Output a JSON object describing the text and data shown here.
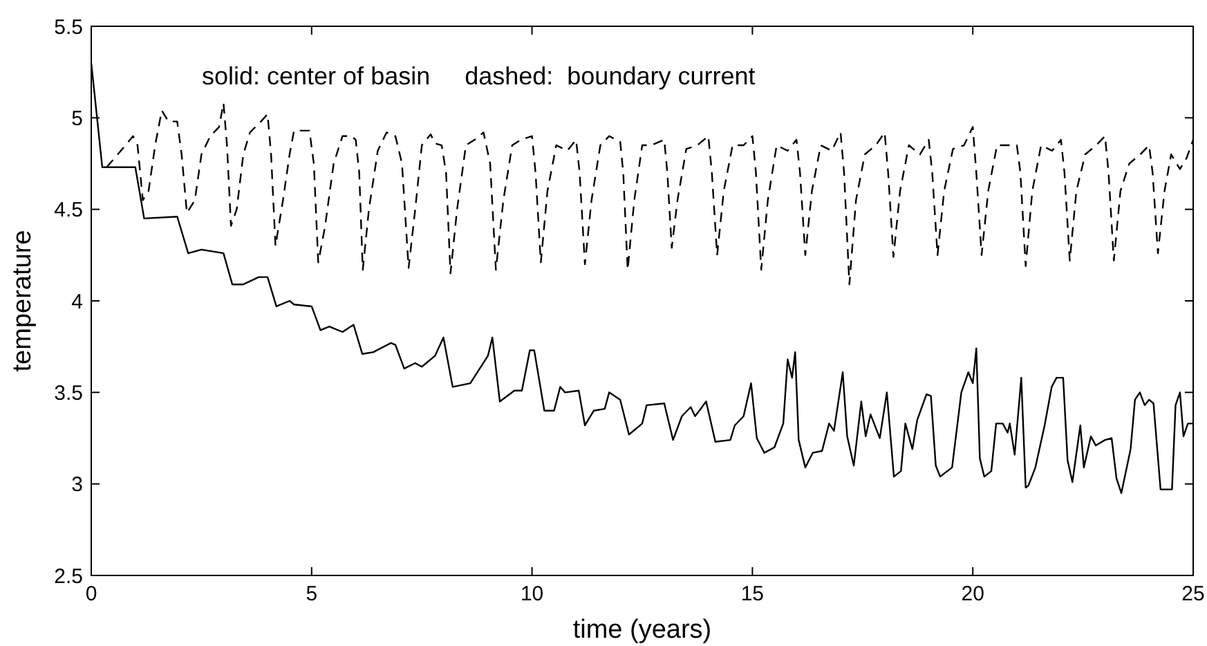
{
  "chart_data": {
    "type": "line",
    "xlabel": "time (years)",
    "ylabel": "temperature",
    "xlim": [
      0,
      25
    ],
    "ylim": [
      2.5,
      5.5
    ],
    "xticks": [
      0,
      5,
      10,
      15,
      20,
      25
    ],
    "yticks": [
      2.5,
      3,
      3.5,
      4,
      4.5,
      5,
      5.5
    ],
    "grid": false,
    "marker": "none",
    "annotations": [
      "solid: center of basin     dashed:  boundary current"
    ],
    "series": [
      {
        "color": "#000000",
        "line_style": "solid",
        "x": [
          0,
          0.25,
          1.0,
          1.2,
          1.95,
          2.2,
          2.5,
          3.0,
          3.2,
          3.45,
          3.8,
          4.0,
          4.2,
          4.5,
          4.6,
          5.0,
          5.2,
          5.4,
          5.7,
          5.95,
          6.15,
          6.4,
          6.8,
          6.9,
          7.1,
          7.35,
          7.5,
          7.8,
          7.99,
          8.2,
          8.6,
          9.0,
          9.05,
          9.1,
          9.27,
          9.6,
          9.77,
          9.95,
          10.05,
          10.28,
          10.5,
          10.64,
          10.75,
          11.06,
          11.2,
          11.4,
          11.65,
          11.75,
          12.0,
          12.2,
          12.5,
          12.6,
          13.0,
          13.2,
          13.4,
          13.6,
          13.7,
          13.95,
          14.16,
          14.5,
          14.6,
          14.8,
          14.97,
          15.1,
          15.27,
          15.5,
          15.7,
          15.8,
          15.9,
          15.97,
          16.05,
          16.2,
          16.37,
          16.58,
          16.74,
          16.85,
          17.05,
          17.15,
          17.3,
          17.47,
          17.57,
          17.68,
          17.89,
          18.05,
          18.21,
          18.37,
          18.47,
          18.63,
          18.74,
          18.95,
          19.05,
          19.16,
          19.26,
          19.53,
          19.74,
          19.9,
          20.0,
          20.08,
          20.16,
          20.26,
          20.42,
          20.53,
          20.68,
          20.79,
          20.84,
          20.95,
          21.1,
          21.2,
          21.26,
          21.42,
          21.63,
          21.79,
          21.9,
          22.05,
          22.15,
          22.26,
          22.44,
          22.52,
          22.68,
          22.79,
          23.0,
          23.15,
          23.26,
          23.37,
          23.58,
          23.68,
          23.79,
          23.9,
          24.0,
          24.1,
          24.26,
          24.52,
          24.6,
          24.7,
          24.78,
          24.88,
          25.0
        ],
        "values": [
          5.3,
          4.73,
          4.73,
          4.45,
          4.46,
          4.26,
          4.28,
          4.26,
          4.09,
          4.09,
          4.13,
          4.13,
          3.97,
          4.0,
          3.98,
          3.97,
          3.84,
          3.86,
          3.83,
          3.87,
          3.71,
          3.72,
          3.77,
          3.76,
          3.63,
          3.66,
          3.64,
          3.7,
          3.8,
          3.53,
          3.55,
          3.7,
          3.75,
          3.8,
          3.45,
          3.51,
          3.51,
          3.73,
          3.73,
          3.4,
          3.4,
          3.53,
          3.5,
          3.51,
          3.32,
          3.4,
          3.41,
          3.5,
          3.46,
          3.27,
          3.33,
          3.43,
          3.44,
          3.24,
          3.37,
          3.42,
          3.37,
          3.45,
          3.23,
          3.24,
          3.32,
          3.37,
          3.55,
          3.25,
          3.17,
          3.2,
          3.33,
          3.68,
          3.58,
          3.72,
          3.24,
          3.09,
          3.17,
          3.18,
          3.33,
          3.29,
          3.61,
          3.26,
          3.1,
          3.45,
          3.26,
          3.38,
          3.25,
          3.5,
          3.04,
          3.07,
          3.33,
          3.19,
          3.35,
          3.49,
          3.48,
          3.1,
          3.04,
          3.09,
          3.5,
          3.61,
          3.55,
          3.74,
          3.14,
          3.04,
          3.07,
          3.33,
          3.33,
          3.28,
          3.33,
          3.16,
          3.58,
          2.98,
          2.99,
          3.09,
          3.32,
          3.53,
          3.58,
          3.58,
          3.13,
          3.01,
          3.32,
          3.09,
          3.26,
          3.21,
          3.24,
          3.25,
          3.03,
          2.95,
          3.19,
          3.46,
          3.5,
          3.43,
          3.46,
          3.44,
          2.97,
          2.97,
          3.43,
          3.5,
          3.26,
          3.33,
          3.33
        ]
      },
      {
        "color": "#000000",
        "line_style": "dashed",
        "x": [
          0.35,
          0.6,
          0.95,
          1.05,
          1.17,
          1.3,
          1.45,
          1.6,
          1.75,
          1.95,
          2.05,
          2.17,
          2.35,
          2.5,
          2.7,
          2.9,
          3.0,
          3.08,
          3.17,
          3.3,
          3.45,
          3.6,
          3.85,
          4.0,
          4.08,
          4.18,
          4.35,
          4.5,
          4.6,
          4.95,
          5.05,
          5.15,
          5.3,
          5.5,
          5.7,
          5.9,
          6.0,
          6.08,
          6.16,
          6.3,
          6.5,
          6.7,
          6.9,
          7.05,
          7.2,
          7.35,
          7.5,
          7.7,
          7.8,
          7.95,
          8.05,
          8.15,
          8.3,
          8.5,
          8.7,
          8.9,
          9.05,
          9.18,
          9.35,
          9.55,
          9.75,
          10.0,
          10.08,
          10.2,
          10.35,
          10.55,
          10.8,
          11.0,
          11.08,
          11.2,
          11.35,
          11.55,
          11.75,
          12.0,
          12.07,
          12.17,
          12.32,
          12.5,
          12.7,
          13.0,
          13.07,
          13.17,
          13.3,
          13.5,
          13.75,
          14.0,
          14.08,
          14.2,
          14.35,
          14.55,
          14.8,
          15.0,
          15.08,
          15.2,
          15.35,
          15.55,
          15.8,
          16.0,
          16.08,
          16.2,
          16.35,
          16.55,
          16.8,
          17.0,
          17.08,
          17.2,
          17.35,
          17.55,
          17.8,
          18.0,
          18.08,
          18.2,
          18.35,
          18.55,
          18.8,
          19.0,
          19.08,
          19.2,
          19.35,
          19.55,
          19.8,
          20.0,
          20.08,
          20.2,
          20.35,
          20.55,
          20.8,
          21.0,
          21.08,
          21.2,
          21.35,
          21.55,
          21.8,
          22.0,
          22.08,
          22.2,
          22.35,
          22.55,
          22.8,
          23.0,
          23.08,
          23.2,
          23.35,
          23.55,
          23.8,
          24.0,
          24.08,
          24.2,
          24.35,
          24.5,
          24.7,
          24.85,
          25.0
        ],
        "values": [
          4.73,
          4.8,
          4.9,
          4.85,
          4.55,
          4.6,
          4.85,
          5.04,
          4.98,
          4.98,
          4.8,
          4.48,
          4.55,
          4.8,
          4.9,
          4.95,
          5.08,
          4.85,
          4.41,
          4.5,
          4.8,
          4.92,
          4.98,
          5.02,
          4.8,
          4.3,
          4.55,
          4.8,
          4.93,
          4.93,
          4.75,
          4.21,
          4.4,
          4.75,
          4.9,
          4.9,
          4.88,
          4.7,
          4.17,
          4.5,
          4.82,
          4.92,
          4.9,
          4.75,
          4.18,
          4.5,
          4.85,
          4.91,
          4.86,
          4.85,
          4.7,
          4.15,
          4.5,
          4.85,
          4.88,
          4.92,
          4.75,
          4.17,
          4.55,
          4.85,
          4.88,
          4.9,
          4.7,
          4.21,
          4.6,
          4.85,
          4.82,
          4.88,
          4.7,
          4.2,
          4.55,
          4.85,
          4.9,
          4.87,
          4.7,
          4.17,
          4.55,
          4.85,
          4.85,
          4.88,
          4.7,
          4.29,
          4.55,
          4.83,
          4.85,
          4.9,
          4.7,
          4.25,
          4.6,
          4.85,
          4.85,
          4.9,
          4.7,
          4.17,
          4.55,
          4.85,
          4.82,
          4.88,
          4.7,
          4.25,
          4.6,
          4.85,
          4.82,
          4.92,
          4.7,
          4.09,
          4.55,
          4.8,
          4.85,
          4.92,
          4.7,
          4.24,
          4.6,
          4.85,
          4.8,
          4.88,
          4.7,
          4.25,
          4.6,
          4.83,
          4.85,
          4.95,
          4.7,
          4.25,
          4.6,
          4.85,
          4.85,
          4.85,
          4.7,
          4.19,
          4.6,
          4.85,
          4.82,
          4.88,
          4.7,
          4.22,
          4.6,
          4.8,
          4.85,
          4.9,
          4.7,
          4.22,
          4.6,
          4.75,
          4.8,
          4.85,
          4.7,
          4.26,
          4.6,
          4.8,
          4.72,
          4.78,
          4.88
        ]
      }
    ]
  }
}
